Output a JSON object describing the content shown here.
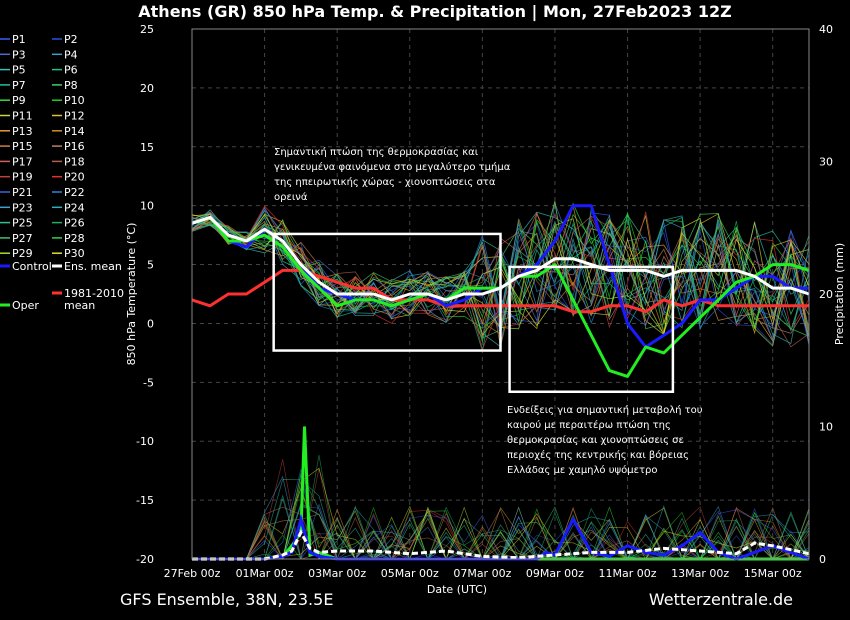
{
  "chart_data": {
    "type": "line",
    "title": "Athens  (GR)  850 hPa Temp. & Precipitation | Mon, 27Feb2023 12Z",
    "xlabel": "Date (UTC)",
    "ylabel": "850 hPa Temperature (°C)",
    "y2label": "Precipitation (mm)",
    "ylim": [
      -20,
      25
    ],
    "y2lim": [
      0,
      40
    ],
    "yticks": [
      "25",
      "20",
      "15",
      "10",
      "5",
      "0",
      "-5",
      "-10",
      "-15",
      "-20"
    ],
    "y2ticks": [
      "40",
      "30",
      "20",
      "10",
      "0"
    ],
    "xticks": [
      "27Feb 00z",
      "01Mar 00z",
      "03Mar 00z",
      "05Mar 00z",
      "07Mar 00z",
      "09Mar 00z",
      "11Mar 00z",
      "13Mar 00z",
      "15Mar 00z"
    ],
    "grid": true,
    "legend_placement": "left",
    "footer_left": "GFS Ensemble, 38N, 23.5E",
    "footer_right": "Wetterzentrale.de",
    "legend": [
      {
        "label": "P1",
        "color": "#3a5cff"
      },
      {
        "label": "P2",
        "color": "#2b50e0"
      },
      {
        "label": "P3",
        "color": "#4a6cd0"
      },
      {
        "label": "P4",
        "color": "#3aa0c8"
      },
      {
        "label": "P5",
        "color": "#30c0c0"
      },
      {
        "label": "P6",
        "color": "#20c080"
      },
      {
        "label": "P7",
        "color": "#20c0a0"
      },
      {
        "label": "P8",
        "color": "#40d060"
      },
      {
        "label": "P9",
        "color": "#30e040"
      },
      {
        "label": "P10",
        "color": "#20d020"
      },
      {
        "label": "P11",
        "color": "#d0d040"
      },
      {
        "label": "P12",
        "color": "#e0c030"
      },
      {
        "label": "P13",
        "color": "#e0a030"
      },
      {
        "label": "P14",
        "color": "#d09020"
      },
      {
        "label": "P15",
        "color": "#d08040"
      },
      {
        "label": "P16",
        "color": "#c08060"
      },
      {
        "label": "P17",
        "color": "#d06060"
      },
      {
        "label": "P18",
        "color": "#b06050"
      },
      {
        "label": "P19",
        "color": "#c04040"
      },
      {
        "label": "P20",
        "color": "#e03030"
      },
      {
        "label": "P21",
        "color": "#4060e0"
      },
      {
        "label": "P22",
        "color": "#3080e0"
      },
      {
        "label": "P23",
        "color": "#40a0d0"
      },
      {
        "label": "P24",
        "color": "#30b0b0"
      },
      {
        "label": "P25",
        "color": "#30c090"
      },
      {
        "label": "P26",
        "color": "#20b060"
      },
      {
        "label": "P27",
        "color": "#40c070"
      },
      {
        "label": "P28",
        "color": "#30d050"
      },
      {
        "label": "P29",
        "color": "#a0e030"
      },
      {
        "label": "P30",
        "color": "#e0e030"
      },
      {
        "label": "Control",
        "color": "#1a1aff"
      },
      {
        "label": "Ens. mean",
        "color": "#ffffff"
      },
      {
        "label": "Oper",
        "color": "#22ee22"
      },
      {
        "label": "1981-2010 mean",
        "color": "#ff3030"
      }
    ],
    "series": [
      {
        "name": "Control",
        "color": "#1a1aff",
        "width": 3,
        "x": [
          0,
          0.5,
          1,
          1.5,
          2,
          2.5,
          3,
          3.5,
          4,
          4.5,
          5,
          5.5,
          6,
          6.5,
          7,
          7.5,
          8,
          8.5,
          9,
          9.5,
          10,
          10.5,
          11,
          11.5,
          12,
          12.5,
          13,
          13.5,
          14,
          14.5,
          15,
          15.5,
          16,
          16.5,
          17
        ],
        "values": [
          8.5,
          9,
          7,
          6.5,
          8,
          7,
          5,
          3,
          2.5,
          2,
          2,
          1.5,
          2,
          2.5,
          1.5,
          2,
          3,
          3,
          4,
          5,
          7,
          10,
          10,
          5,
          0,
          -2,
          -1,
          0,
          2,
          2,
          3,
          4,
          4,
          3,
          3
        ]
      },
      {
        "name": "Ens. mean",
        "color": "#ffffff",
        "width": 3,
        "x": [
          0,
          0.5,
          1,
          1.5,
          2,
          2.5,
          3,
          3.5,
          4,
          4.5,
          5,
          5.5,
          6,
          6.5,
          7,
          7.5,
          8,
          8.5,
          9,
          9.5,
          10,
          10.5,
          11,
          11.5,
          12,
          12.5,
          13,
          13.5,
          14,
          14.5,
          15,
          15.5,
          16,
          16.5,
          17
        ],
        "values": [
          8.5,
          9,
          7.5,
          7,
          8,
          7,
          5,
          3.5,
          2.5,
          2.5,
          2.5,
          2,
          2.5,
          2.5,
          2,
          2.5,
          2.5,
          3,
          4,
          4.5,
          5.5,
          5.5,
          5,
          4.5,
          4.5,
          4.5,
          4,
          4.5,
          4.5,
          4.5,
          4.5,
          4,
          3,
          3,
          2.5
        ]
      },
      {
        "name": "Oper",
        "color": "#22ee22",
        "width": 3,
        "x": [
          0,
          0.5,
          1,
          1.5,
          2,
          2.5,
          3,
          3.5,
          4,
          4.5,
          5,
          5.5,
          6,
          6.5,
          7,
          7.5,
          8,
          8.5,
          9,
          9.5,
          10,
          10.5,
          11,
          11.5,
          12,
          12.5,
          13,
          13.5,
          14,
          14.5,
          15,
          15.5,
          16,
          16.5,
          17
        ],
        "values": [
          8.5,
          9,
          7,
          7,
          7.5,
          6.5,
          4.5,
          3,
          1.5,
          2,
          2,
          1.5,
          2,
          2.5,
          2,
          3,
          3,
          3,
          4,
          4,
          5,
          2,
          -1,
          -4,
          -4.5,
          -2,
          -2.5,
          -1,
          0.5,
          2,
          3.5,
          4,
          5,
          5,
          4.5
        ]
      },
      {
        "name": "1981-2010 mean",
        "color": "#ff3030",
        "width": 3,
        "x": [
          0,
          0.5,
          1,
          1.5,
          2,
          2.5,
          3,
          3.5,
          4,
          4.5,
          5,
          5.5,
          6,
          6.5,
          7,
          7.5,
          8,
          8.5,
          9,
          9.5,
          10,
          10.5,
          11,
          11.5,
          12,
          12.5,
          13,
          13.5,
          14,
          14.5,
          15,
          15.5,
          16,
          16.5,
          17
        ],
        "values": [
          2,
          1.5,
          2.5,
          2.5,
          3.5,
          4.5,
          4.5,
          4,
          3.5,
          3,
          3,
          2,
          2,
          2,
          1.5,
          1.5,
          1.5,
          1.5,
          1.5,
          1.5,
          1.5,
          1,
          1,
          1.5,
          1.5,
          1,
          2,
          1.5,
          2,
          1.5,
          1.5,
          1.5,
          1.5,
          1.5,
          1.5
        ]
      }
    ],
    "precip_series": [
      {
        "name": "Oper",
        "color": "#22ee22",
        "width": 3,
        "x": [
          0,
          2,
          2.5,
          2.75,
          3,
          3.1,
          3.25,
          3.5,
          4,
          5,
          8,
          9,
          10,
          11,
          12,
          14,
          15,
          17
        ],
        "values": [
          0,
          0,
          0.2,
          1,
          2,
          10,
          0.3,
          0.5,
          0,
          0,
          0,
          0,
          0,
          0,
          0,
          0,
          0,
          0
        ]
      },
      {
        "name": "Control",
        "color": "#1a1aff",
        "width": 3,
        "x": [
          0,
          2,
          2.5,
          2.75,
          3,
          3.25,
          3.5,
          4,
          8,
          9,
          9.5,
          9.75,
          10,
          10.5,
          11,
          11.5,
          12,
          12.5,
          13,
          13.5,
          14,
          14.5,
          15,
          15.5,
          16,
          17
        ],
        "values": [
          0,
          0,
          0.2,
          0.5,
          3,
          0.5,
          0.2,
          0,
          0,
          0,
          0,
          0.5,
          0.3,
          3,
          0.5,
          0.2,
          1,
          0.5,
          0.3,
          1,
          2,
          0.5,
          0,
          0.5,
          1,
          0
        ]
      },
      {
        "name": "Ens. mean",
        "color": "#ffffff",
        "width": 3,
        "x": [
          0,
          2,
          2.5,
          2.75,
          3,
          3.25,
          3.5,
          4,
          5,
          6,
          7,
          8,
          9,
          10,
          11,
          12,
          13,
          14,
          15,
          15.5,
          16,
          16.5,
          17
        ],
        "values": [
          0,
          0,
          0.3,
          0.6,
          2,
          0.8,
          0.5,
          0.6,
          0.6,
          0.4,
          0.6,
          0.2,
          0.1,
          0.3,
          0.5,
          0.5,
          0.8,
          0.6,
          0.4,
          1.2,
          1,
          0.7,
          0.4
        ]
      }
    ],
    "annotations": [
      {
        "lines": [
          "Σημαντική πτώση της θερμοκρασίας και",
          "γενικευμένα φαινόμενα στο μεγαλύτερο τμήμα",
          "της ηπειρωτικής χώρας - χιονοπτώσεις στα",
          "ορεινά"
        ]
      },
      {
        "lines": [
          "Ενδείξεις για σημαντική μεταβολή του",
          "καιρού με περαιτέρω πτώση της",
          "θερμοκρασίας και χιονοπτώσεις σε",
          "περιοχές της κεντρικής και βόρειας",
          "Ελλάδας με χαμηλό υψόμετρο"
        ]
      }
    ],
    "highlight_boxes": [
      {
        "x_range": [
          2.25,
          8.5
        ],
        "y_range": [
          -2.3,
          7.6
        ]
      },
      {
        "x_range": [
          8.75,
          13.25
        ],
        "y_range": [
          -5.8,
          4.8
        ]
      }
    ]
  }
}
